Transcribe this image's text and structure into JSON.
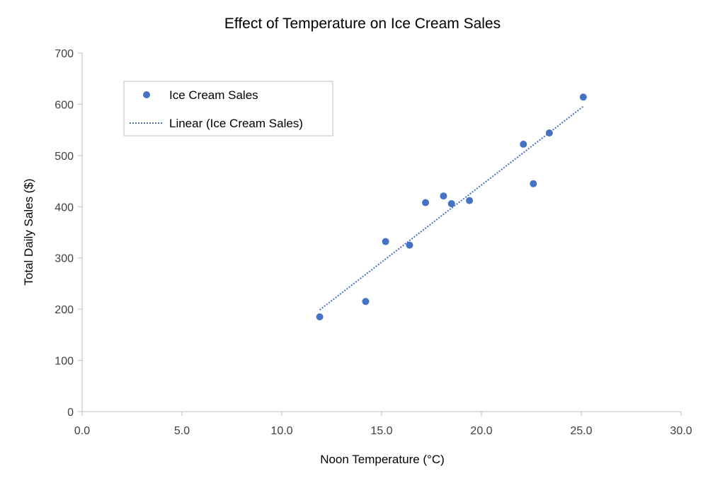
{
  "chart_data": {
    "type": "scatter",
    "title": "Effect of Temperature on Ice Cream Sales",
    "xlabel": "Noon Temperature (°C)",
    "ylabel": "Total Daily Sales ($)",
    "xlim": [
      0,
      30
    ],
    "ylim": [
      0,
      700
    ],
    "xticks": [
      "0.0",
      "5.0",
      "10.0",
      "15.0",
      "20.0",
      "25.0",
      "30.0"
    ],
    "yticks": [
      "0",
      "100",
      "200",
      "300",
      "400",
      "500",
      "600",
      "700"
    ],
    "grid": false,
    "legend_position": "top-left",
    "series": [
      {
        "name": "Ice Cream Sales",
        "color": "#4472C4",
        "x": [
          14.2,
          16.4,
          11.9,
          15.2,
          18.5,
          22.1,
          19.4,
          25.1,
          23.4,
          18.1,
          22.6,
          17.2
        ],
        "y": [
          215,
          325,
          185,
          332,
          406,
          522,
          412,
          614,
          544,
          421,
          445,
          408
        ]
      }
    ],
    "trendline": {
      "name": "Linear (Ice Cream Sales)",
      "type": "linear",
      "style": "dotted",
      "color": "#4472C4"
    }
  }
}
